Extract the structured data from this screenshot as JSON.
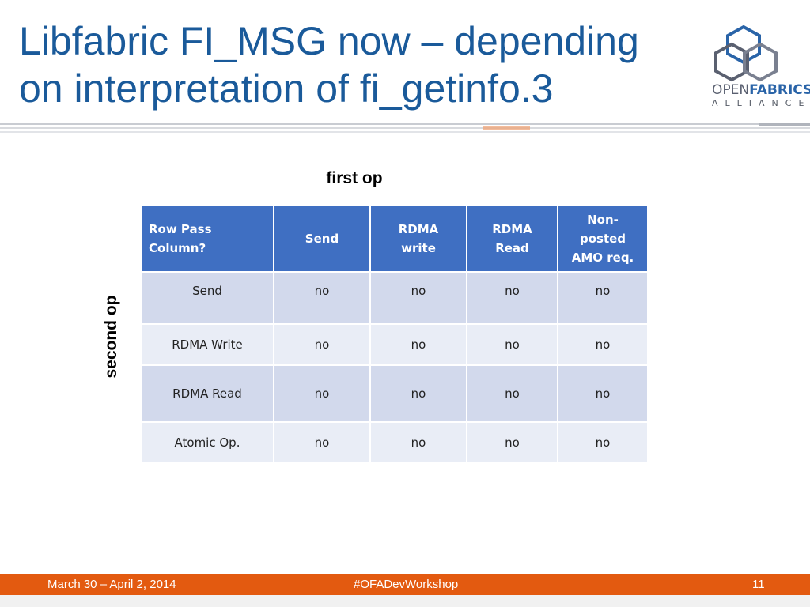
{
  "slide": {
    "title_line1": "Libfabric FI_MSG now – depending",
    "title_line2": "on interpretation of fi_getinfo.3"
  },
  "logo": {
    "open": "OPEN",
    "fabrics": "FABRICS",
    "alliance": "ALLIANCE"
  },
  "axis": {
    "first_op": "first op",
    "second_op": "second op"
  },
  "table": {
    "corner": [
      "Row Pass",
      "Column?"
    ],
    "headers": [
      [
        "Send"
      ],
      [
        "RDMA",
        "write"
      ],
      [
        "RDMA",
        "Read"
      ],
      [
        "Non-",
        "posted",
        "AMO req."
      ]
    ],
    "rows": [
      {
        "label": "Send",
        "cells": [
          "no",
          "no",
          "no",
          "no"
        ]
      },
      {
        "label": "RDMA Write",
        "cells": [
          "no",
          "no",
          "no",
          "no"
        ]
      },
      {
        "label": "RDMA Read",
        "cells": [
          "no",
          "no",
          "no",
          "no"
        ]
      },
      {
        "label": "Atomic Op.",
        "cells": [
          "no",
          "no",
          "no",
          "no"
        ]
      }
    ]
  },
  "footer": {
    "date": "March 30 – April 2, 2014",
    "hashtag": "#OFADevWorkshop",
    "page": "11"
  },
  "colors": {
    "title": "#1a5a9a",
    "header_bg": "#3f6fc2",
    "row_odd": "#d2d9ec",
    "row_even": "#e9edf6",
    "footer_bg": "#e35a10"
  }
}
